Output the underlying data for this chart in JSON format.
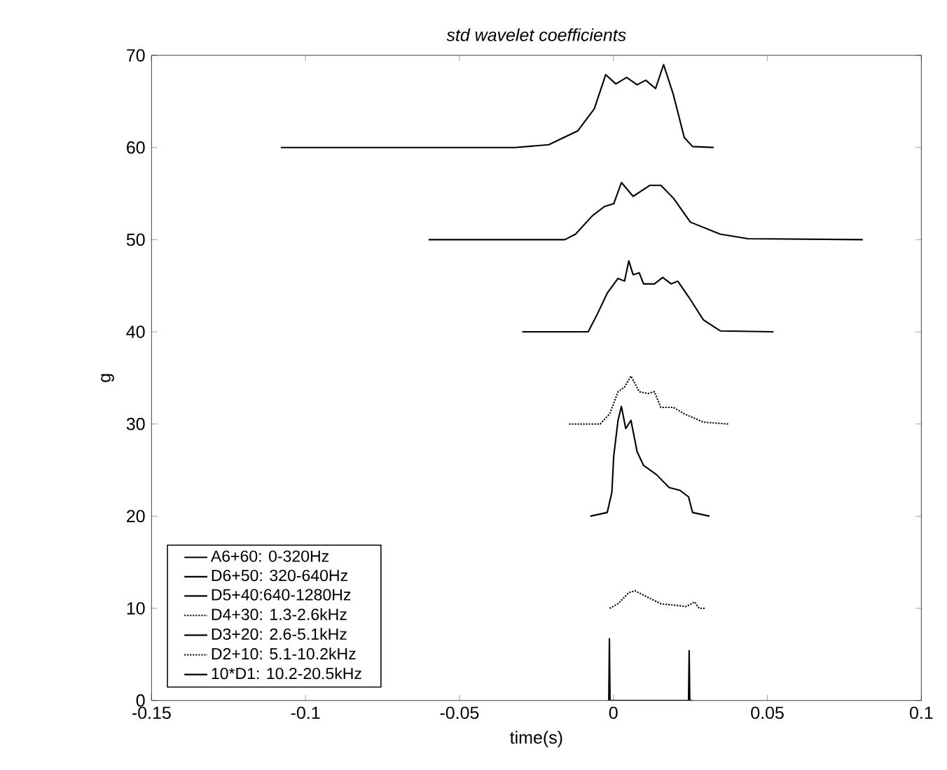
{
  "chart_data": {
    "type": "line",
    "title": "std wavelet coefficients",
    "xlabel": "time(s)",
    "ylabel": "g",
    "xlim": [
      -0.15,
      0.1
    ],
    "ylim": [
      0,
      70
    ],
    "xticks": [
      -0.15,
      -0.1,
      -0.05,
      0,
      0.05,
      0.1
    ],
    "yticks": [
      0,
      10,
      20,
      30,
      40,
      50,
      60,
      70
    ],
    "grid": false,
    "legend": "bottom left",
    "marker": "none",
    "series": [
      {
        "name": "A6+60: 0-320Hz",
        "color": "#000000",
        "line_style": "solid",
        "x": [
          -0.108,
          -0.032,
          -0.021,
          -0.0116,
          -0.0062,
          -0.0025,
          0.0008,
          0.0043,
          0.0077,
          0.0105,
          0.0137,
          0.0163,
          0.0195,
          0.023,
          0.0257,
          0.0326
        ],
        "values": [
          60,
          60,
          60.3,
          61.8,
          64.2,
          67.9,
          66.9,
          67.6,
          66.8,
          67.3,
          66.4,
          69.0,
          65.7,
          61.1,
          60.1,
          60
        ]
      },
      {
        "name": "D6+50: 320-640Hz",
        "color": "#000000",
        "line_style": "solid",
        "x": [
          -0.06,
          -0.0158,
          -0.0123,
          -0.0068,
          -0.0029,
          0.0001,
          0.0026,
          0.0064,
          0.0119,
          0.0154,
          0.0195,
          0.025,
          0.0347,
          0.0437,
          0.081
        ],
        "values": [
          50,
          50,
          50.6,
          52.6,
          53.6,
          53.9,
          56.2,
          54.7,
          55.9,
          55.9,
          54.5,
          51.9,
          50.6,
          50.1,
          50
        ]
      },
      {
        "name": "D5+40:640-1280Hz",
        "color": "#000000",
        "line_style": "solid",
        "x": [
          -0.0296,
          -0.0082,
          -0.0054,
          -0.002,
          0.0015,
          0.0036,
          0.005,
          0.0064,
          0.0084,
          0.0098,
          0.0133,
          0.016,
          0.0188,
          0.0209,
          0.025,
          0.0292,
          0.0347,
          0.052
        ],
        "values": [
          40,
          40,
          41.8,
          44.2,
          45.8,
          45.5,
          47.7,
          46.2,
          46.4,
          45.2,
          45.2,
          45.9,
          45.2,
          45.5,
          43.5,
          41.3,
          40.1,
          40
        ]
      },
      {
        "name": "D4+30: 1.3-2.6kHz",
        "color": "#000000",
        "line_style": "dotted",
        "x": [
          -0.0144,
          -0.0043,
          -0.0012,
          0.0015,
          0.0036,
          0.0057,
          0.0084,
          0.0112,
          0.0133,
          0.0154,
          0.0195,
          0.023,
          0.0292,
          0.0375
        ],
        "values": [
          30,
          30,
          31.1,
          33.5,
          34.0,
          35.2,
          33.5,
          33.3,
          33.5,
          31.8,
          31.8,
          31.1,
          30.2,
          30
        ]
      },
      {
        "name": "D3+20: 2.6-5.1kHz",
        "color": "#000000",
        "line_style": "solid",
        "x": [
          -0.0075,
          -0.002,
          -0.0005,
          0.0001,
          0.0015,
          0.0026,
          0.004,
          0.0057,
          0.0077,
          0.0098,
          0.014,
          0.0181,
          0.0216,
          0.0244,
          0.0257,
          0.0312
        ],
        "values": [
          20,
          20.4,
          22.6,
          26.5,
          30.4,
          31.9,
          29.5,
          30.4,
          27.0,
          25.5,
          24.5,
          23.1,
          22.8,
          22.1,
          20.4,
          20
        ]
      },
      {
        "name": "D2+10: 5.1-10.2kHz",
        "color": "#000000",
        "line_style": "dotted",
        "x": [
          -0.0012,
          0.0015,
          0.005,
          0.007,
          0.0112,
          0.0154,
          0.0237,
          0.0264,
          0.0278,
          0.0299
        ],
        "values": [
          10,
          10.5,
          11.7,
          11.9,
          11.2,
          10.5,
          10.2,
          10.7,
          10,
          10
        ]
      },
      {
        "name": "10*D1: 10.2-20.5kHz",
        "color": "#000000",
        "line_style": "solid",
        "x": [
          -0.0015,
          -0.0013,
          -0.0011,
          0.0244,
          0.0246,
          0.0248,
          0.0257
        ],
        "values": [
          0,
          6.7,
          0,
          0,
          5.4,
          0,
          0
        ]
      }
    ]
  }
}
